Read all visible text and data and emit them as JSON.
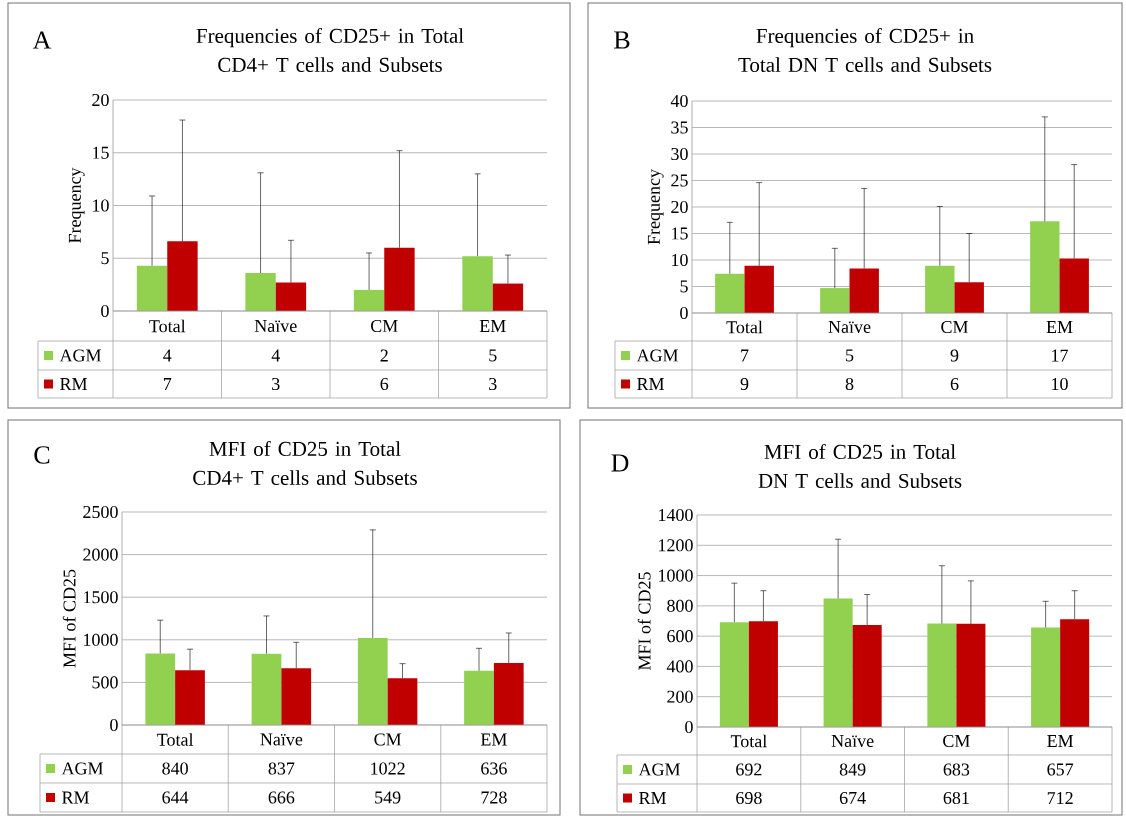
{
  "chart_data": [
    {
      "type": "bar",
      "title": "Frequencies of CD25+ in Total CD4+ T cells and Subsets",
      "annotations": [
        "A"
      ],
      "ylabel": "Frequency",
      "categories": [
        "Total",
        "Naïve",
        "CM",
        "EM"
      ],
      "ylim": [
        0,
        20
      ],
      "yticks": [
        0,
        5,
        10,
        15,
        20
      ],
      "grid": "y",
      "legend": "bottom",
      "series": [
        {
          "name": "AGM",
          "color": "#92d050",
          "values": [
            4.3,
            3.6,
            2.0,
            5.2
          ],
          "value_labels": [
            "4",
            "4",
            "2",
            "5"
          ],
          "errors": [
            [
              4.3,
              10.9
            ],
            [
              3.6,
              13.1
            ],
            [
              2.0,
              5.5
            ],
            [
              5.2,
              13.0
            ]
          ]
        },
        {
          "name": "RM",
          "color": "#c00000",
          "values": [
            6.6,
            2.7,
            6.0,
            2.6
          ],
          "value_labels": [
            "7",
            "3",
            "6",
            "3"
          ],
          "errors": [
            [
              6.6,
              18.1
            ],
            [
              2.7,
              6.7
            ],
            [
              6.0,
              15.2
            ],
            [
              2.6,
              5.3
            ]
          ]
        }
      ]
    },
    {
      "type": "bar",
      "title": "Frequencies of CD25+ in Total DN T cells and Subsets",
      "annotations": [
        "B"
      ],
      "ylabel": "Frequency",
      "categories": [
        "Total",
        "Naïve",
        "CM",
        "EM"
      ],
      "ylim": [
        0,
        40
      ],
      "yticks": [
        0,
        5,
        10,
        15,
        20,
        25,
        30,
        35,
        40
      ],
      "grid": "y",
      "legend": "bottom",
      "series": [
        {
          "name": "AGM",
          "color": "#92d050",
          "values": [
            7.4,
            4.7,
            8.9,
            17.3
          ],
          "value_labels": [
            "7",
            "5",
            "9",
            "17"
          ],
          "errors": [
            [
              7.4,
              17.1
            ],
            [
              4.7,
              12.2
            ],
            [
              8.9,
              20.1
            ],
            [
              17.3,
              37.0
            ]
          ]
        },
        {
          "name": "RM",
          "color": "#c00000",
          "values": [
            8.9,
            8.4,
            5.8,
            10.3
          ],
          "value_labels": [
            "9",
            "8",
            "6",
            "10"
          ],
          "errors": [
            [
              8.9,
              24.6
            ],
            [
              8.4,
              23.5
            ],
            [
              5.8,
              15.0
            ],
            [
              10.3,
              28.0
            ]
          ]
        }
      ]
    },
    {
      "type": "bar",
      "title": "MFI of CD25 in Total CD4+ T cells and Subsets",
      "annotations": [
        "C"
      ],
      "ylabel": "MFI of CD25",
      "categories": [
        "Total",
        "Naïve",
        "CM",
        "EM"
      ],
      "ylim": [
        0,
        2500
      ],
      "yticks": [
        0,
        500,
        1000,
        1500,
        2000,
        2500
      ],
      "grid": "y",
      "legend": "bottom",
      "data_labels": true,
      "series": [
        {
          "name": "AGM",
          "color": "#92d050",
          "values": [
            840,
            837,
            1022,
            636
          ],
          "errors": [
            [
              840,
              1230
            ],
            [
              837,
              1280
            ],
            [
              1022,
              2290
            ],
            [
              636,
              900
            ]
          ]
        },
        {
          "name": "RM",
          "color": "#c00000",
          "values": [
            644,
            666,
            549,
            728
          ],
          "errors": [
            [
              644,
              890
            ],
            [
              666,
              970
            ],
            [
              549,
              720
            ],
            [
              728,
              1080
            ]
          ]
        }
      ]
    },
    {
      "type": "bar",
      "title": "MFI of CD25 in Total DN T cells and Subsets",
      "annotations": [
        "D"
      ],
      "ylabel": "MFI of CD25",
      "categories": [
        "Total",
        "Naïve",
        "CM",
        "EM"
      ],
      "ylim": [
        0,
        1400
      ],
      "yticks": [
        0,
        200,
        400,
        600,
        800,
        1000,
        1200,
        1400
      ],
      "grid": "y",
      "legend": "bottom",
      "data_labels": true,
      "series": [
        {
          "name": "AGM",
          "color": "#92d050",
          "values": [
            692,
            849,
            683,
            657
          ],
          "errors": [
            [
              692,
              950
            ],
            [
              849,
              1240
            ],
            [
              683,
              1065
            ],
            [
              657,
              830
            ]
          ]
        },
        {
          "name": "RM",
          "color": "#c00000",
          "values": [
            698,
            674,
            681,
            712
          ],
          "errors": [
            [
              698,
              900
            ],
            [
              674,
              875
            ],
            [
              681,
              965
            ],
            [
              712,
              900
            ]
          ]
        }
      ]
    }
  ]
}
